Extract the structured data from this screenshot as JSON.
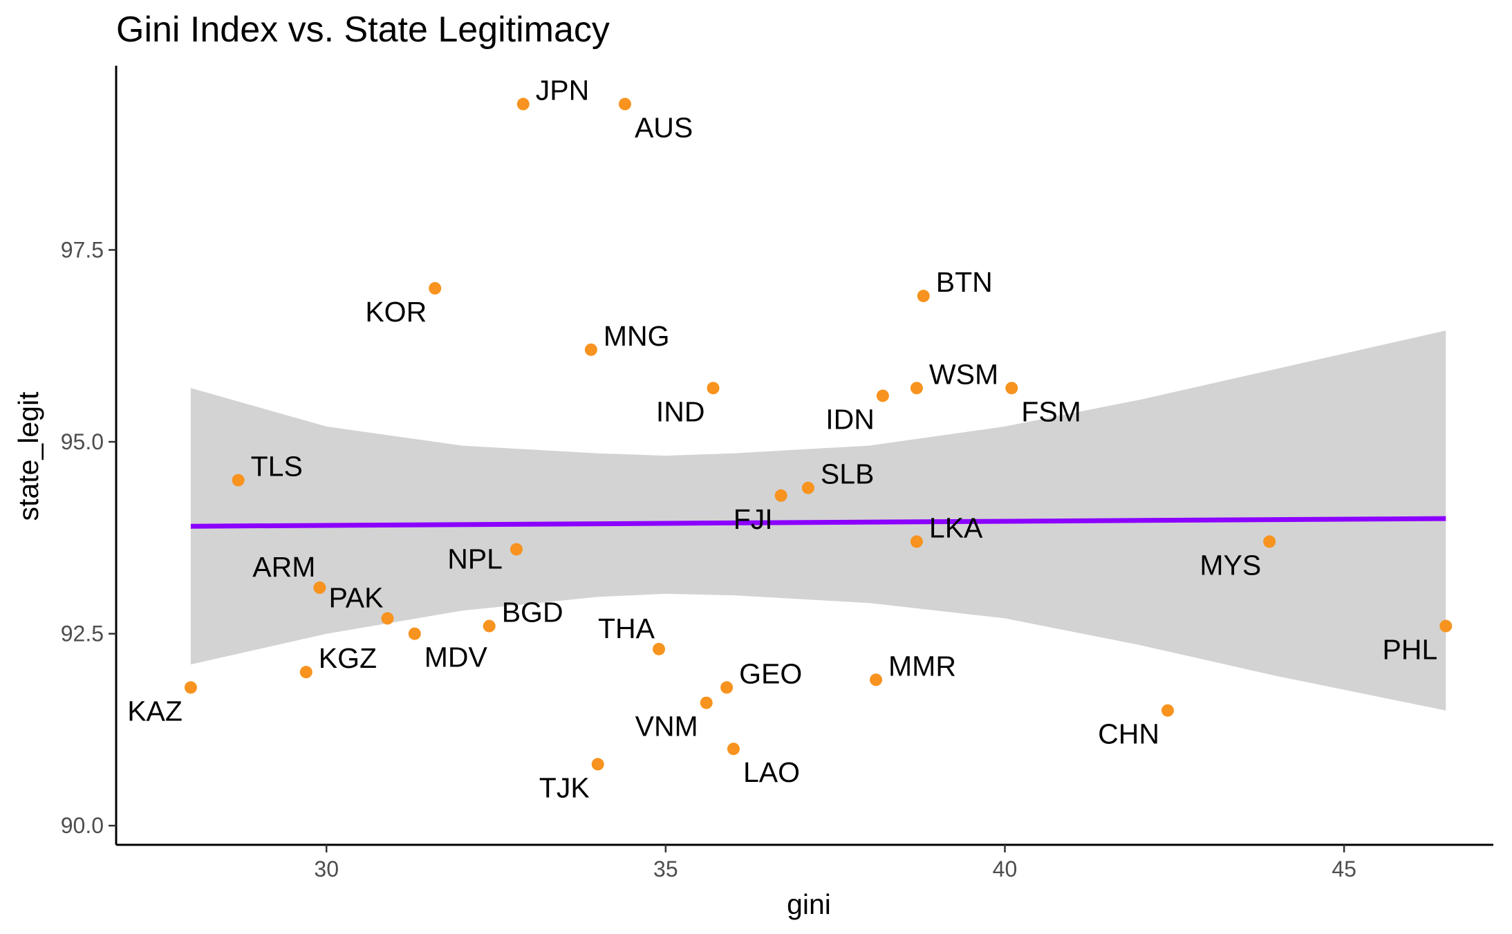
{
  "chart_data": {
    "type": "scatter",
    "title": "Gini Index vs. State Legitimacy",
    "xlabel": "gini",
    "ylabel": "state_legit",
    "xlim": [
      26.9,
      47.2
    ],
    "ylim": [
      89.75,
      99.9
    ],
    "xticks": [
      {
        "value": 30,
        "label": "30"
      },
      {
        "value": 35,
        "label": "35"
      },
      {
        "value": 40,
        "label": "40"
      },
      {
        "value": 45,
        "label": "45"
      }
    ],
    "yticks": [
      {
        "value": 90.0,
        "label": "90.0"
      },
      {
        "value": 92.5,
        "label": "92.5"
      },
      {
        "value": 95.0,
        "label": "95.0"
      },
      {
        "value": 97.5,
        "label": "97.5"
      }
    ],
    "grid": false,
    "legend": "none",
    "point_color": "#F7931E",
    "fit_color": "#8B00FF",
    "ribbon_color": "#D3D3D3",
    "fit_line": {
      "x": [
        28.0,
        46.5
      ],
      "y": [
        93.9,
        94.0
      ]
    },
    "confidence_band": {
      "x": [
        28.0,
        30.0,
        32.0,
        34.0,
        35.0,
        36.0,
        38.0,
        40.0,
        42.0,
        44.0,
        46.5
      ],
      "upper": [
        95.7,
        95.2,
        94.95,
        94.85,
        94.82,
        94.85,
        94.95,
        95.2,
        95.55,
        95.95,
        96.45
      ],
      "lower": [
        92.1,
        92.5,
        92.8,
        92.98,
        93.02,
        93.0,
        92.9,
        92.7,
        92.35,
        91.95,
        91.5
      ]
    },
    "points": [
      {
        "label": "JPN",
        "x": 32.9,
        "y": 99.4,
        "anchor": "top-right"
      },
      {
        "label": "AUS",
        "x": 34.4,
        "y": 99.4,
        "anchor": "bottom-right"
      },
      {
        "label": "KOR",
        "x": 31.6,
        "y": 97.0,
        "anchor": "bottom-left"
      },
      {
        "label": "BTN",
        "x": 38.8,
        "y": 96.9,
        "anchor": "top-right"
      },
      {
        "label": "MNG",
        "x": 33.9,
        "y": 96.2,
        "anchor": "top-right"
      },
      {
        "label": "IND",
        "x": 35.7,
        "y": 95.7,
        "anchor": "bottom-left"
      },
      {
        "label": "WSM",
        "x": 38.7,
        "y": 95.7,
        "anchor": "top-right"
      },
      {
        "label": "FSM",
        "x": 40.1,
        "y": 95.7,
        "anchor": "bottom-right"
      },
      {
        "label": "IDN",
        "x": 38.2,
        "y": 95.6,
        "anchor": "bottom-left"
      },
      {
        "label": "TLS",
        "x": 28.7,
        "y": 94.5,
        "anchor": "top-right"
      },
      {
        "label": "SLB",
        "x": 37.1,
        "y": 94.4,
        "anchor": "top-right"
      },
      {
        "label": "FJI",
        "x": 36.7,
        "y": 94.3,
        "anchor": "bottom-left"
      },
      {
        "label": "LKA",
        "x": 38.7,
        "y": 93.7,
        "anchor": "top-right"
      },
      {
        "label": "MYS",
        "x": 43.9,
        "y": 93.7,
        "anchor": "bottom-left"
      },
      {
        "label": "NPL",
        "x": 32.8,
        "y": 93.6,
        "anchor": "left"
      },
      {
        "label": "ARM",
        "x": 29.9,
        "y": 93.1,
        "anchor": "top-left"
      },
      {
        "label": "PAK",
        "x": 30.9,
        "y": 92.7,
        "anchor": "top-left"
      },
      {
        "label": "BGD",
        "x": 32.4,
        "y": 92.6,
        "anchor": "top-right"
      },
      {
        "label": "PHL",
        "x": 46.5,
        "y": 92.6,
        "anchor": "bottom-left"
      },
      {
        "label": "MDV",
        "x": 31.3,
        "y": 92.5,
        "anchor": "bottom-right"
      },
      {
        "label": "THA",
        "x": 34.9,
        "y": 92.3,
        "anchor": "top-left"
      },
      {
        "label": "KGZ",
        "x": 29.7,
        "y": 92.0,
        "anchor": "top-right"
      },
      {
        "label": "MMR",
        "x": 38.1,
        "y": 91.9,
        "anchor": "top-right"
      },
      {
        "label": "KAZ",
        "x": 28.0,
        "y": 91.8,
        "anchor": "bottom-left"
      },
      {
        "label": "GEO",
        "x": 35.9,
        "y": 91.8,
        "anchor": "top-right"
      },
      {
        "label": "VNM",
        "x": 35.6,
        "y": 91.6,
        "anchor": "bottom-left"
      },
      {
        "label": "CHN",
        "x": 42.4,
        "y": 91.5,
        "anchor": "bottom-left"
      },
      {
        "label": "LAO",
        "x": 36.0,
        "y": 91.0,
        "anchor": "bottom-right"
      },
      {
        "label": "TJK",
        "x": 34.0,
        "y": 90.8,
        "anchor": "bottom-left"
      }
    ]
  }
}
